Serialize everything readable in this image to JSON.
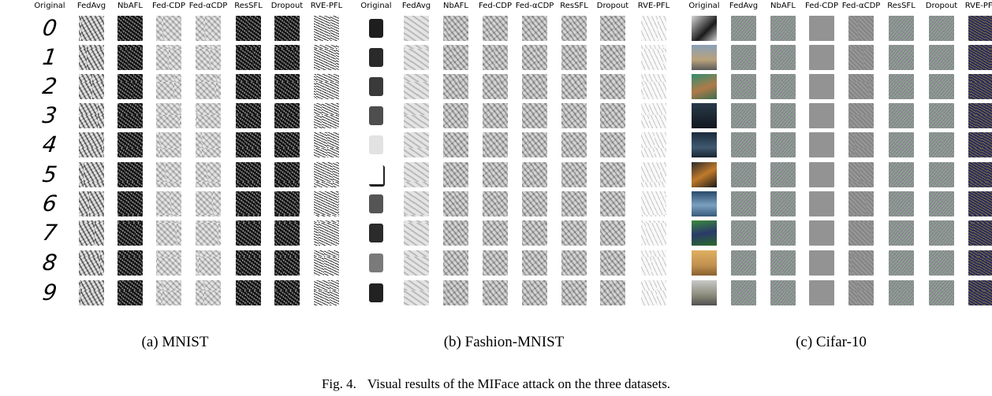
{
  "panels": [
    {
      "id": "mnist",
      "headers": [
        "Original",
        "FedAvg",
        "NbAFL",
        "Fed-CDP",
        "Fed-αCDP",
        "ResSFL",
        "Dropout",
        "RVE-PFL"
      ],
      "originals": [
        "0",
        "1",
        "2",
        "3",
        "4",
        "5",
        "6",
        "7",
        "8",
        "9"
      ],
      "subcaption": "(a) MNIST"
    },
    {
      "id": "fashion",
      "headers": [
        "Original",
        "FedAvg",
        "NbAFL",
        "Fed-CDP",
        "Fed-αCDP",
        "ResSFL",
        "Dropout",
        "RVE-PFL"
      ],
      "subcaption": "(b) Fashion-MNIST"
    },
    {
      "id": "cifar",
      "headers": [
        "Original",
        "FedAvg",
        "NbAFL",
        "Fed-CDP",
        "Fed-αCDP",
        "ResSFL",
        "Dropout",
        "RVE-PFL"
      ],
      "subcaption": "(c) Cifar-10"
    }
  ],
  "caption": {
    "label": "Fig. 4.",
    "text": "Visual results of the MIFace attack on the three datasets."
  }
}
